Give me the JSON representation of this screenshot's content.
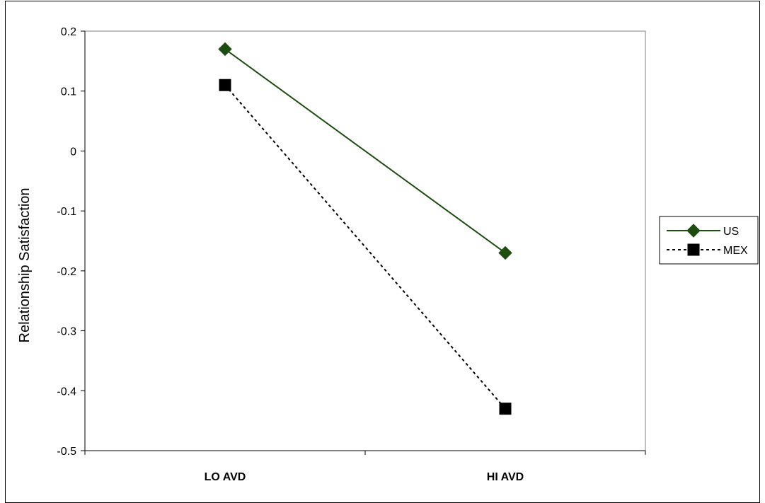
{
  "chart_data": {
    "type": "line",
    "categories": [
      "LO AVD",
      "HI AVD"
    ],
    "series": [
      {
        "name": "US",
        "values": [
          0.17,
          -0.17
        ],
        "color": "#1e4d12",
        "line": "solid",
        "marker": "diamond"
      },
      {
        "name": "MEX",
        "values": [
          0.11,
          -0.43
        ],
        "color": "#000000",
        "line": "dotted",
        "marker": "square"
      }
    ],
    "ylabel": "Relationship Satisfaction",
    "xlabel": "",
    "ylim": [
      -0.5,
      0.2
    ],
    "yticks": [
      "0.2",
      "0.1",
      "0",
      "-0.1",
      "-0.2",
      "-0.3",
      "-0.4",
      "-0.5"
    ],
    "ytick_values": [
      0.2,
      0.1,
      0,
      -0.1,
      -0.2,
      -0.3,
      -0.4,
      -0.5
    ],
    "grid": false,
    "legend_position": "right"
  }
}
